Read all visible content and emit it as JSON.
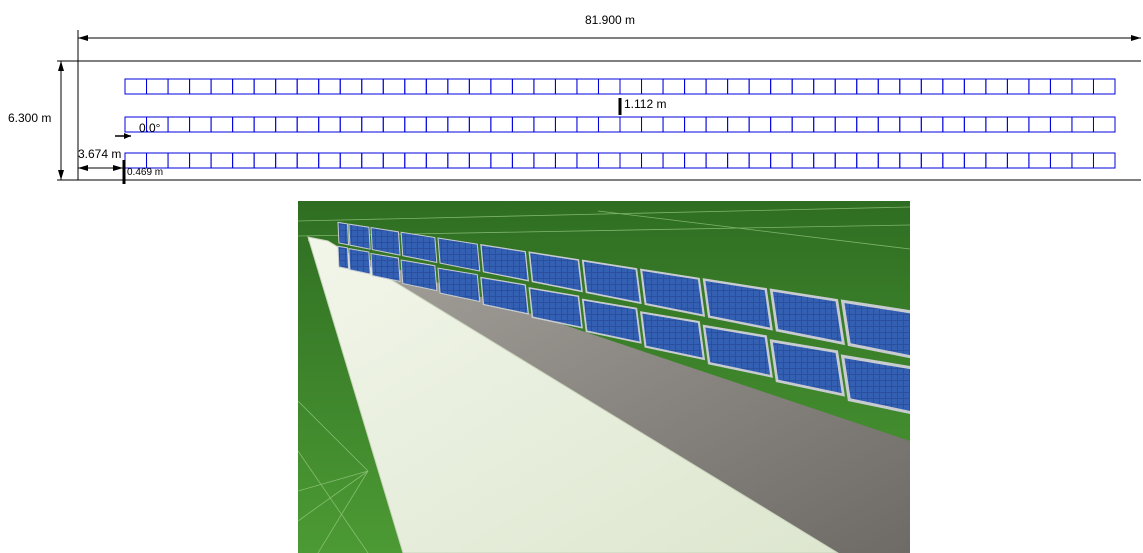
{
  "plan": {
    "total_length": "81.900 m",
    "total_width": "6.300 m",
    "row_pitch": "1.112 m",
    "tilt": "0.0°",
    "side_offset": "3.674 m",
    "edge_gap": "0.469 m",
    "rows": 3,
    "modules_per_row": 46,
    "module_outline_color": "#0000dd"
  },
  "render": {
    "description_icon": "solar-array-3d-view",
    "grass_color": "#3f8a2a",
    "panel_color": "#2a4a8c",
    "gravel_color": "#8a8680",
    "wall_color": "#e8efdc"
  }
}
